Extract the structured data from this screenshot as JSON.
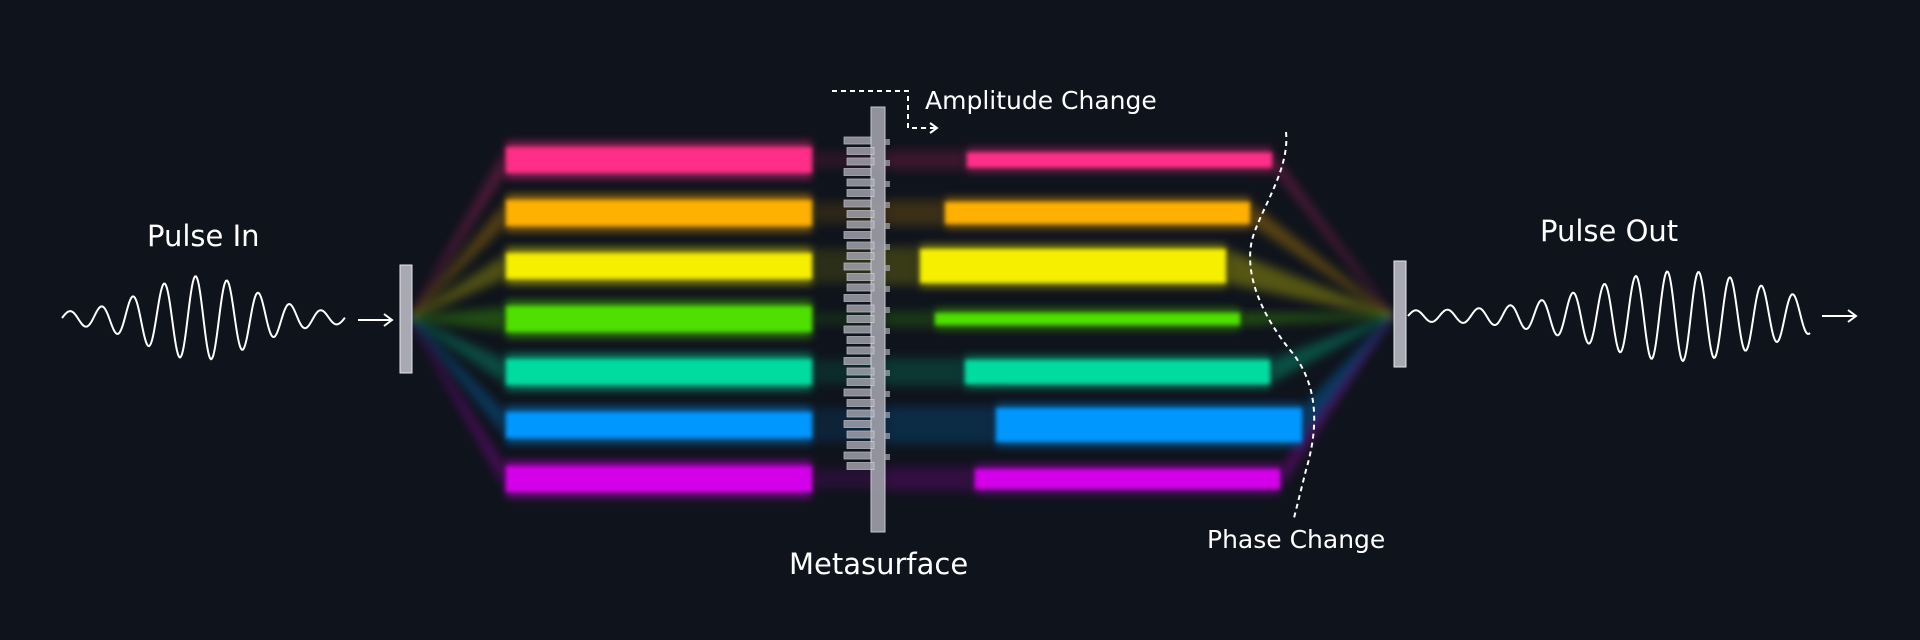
{
  "labels": {
    "pulse_in": "Pulse In",
    "pulse_out": "Pulse Out",
    "metasurface": "Metasurface",
    "amplitude_change": "Amplitude Change",
    "phase_change": "Phase Change"
  },
  "colors": {
    "background": "#0f131c",
    "beams": [
      "#ff2e88",
      "#ffb000",
      "#f6f000",
      "#4fe000",
      "#00dca0",
      "#0098ff",
      "#d500ea"
    ],
    "element_fill": "#a9a9b3",
    "stroke": "#ffffff"
  }
}
